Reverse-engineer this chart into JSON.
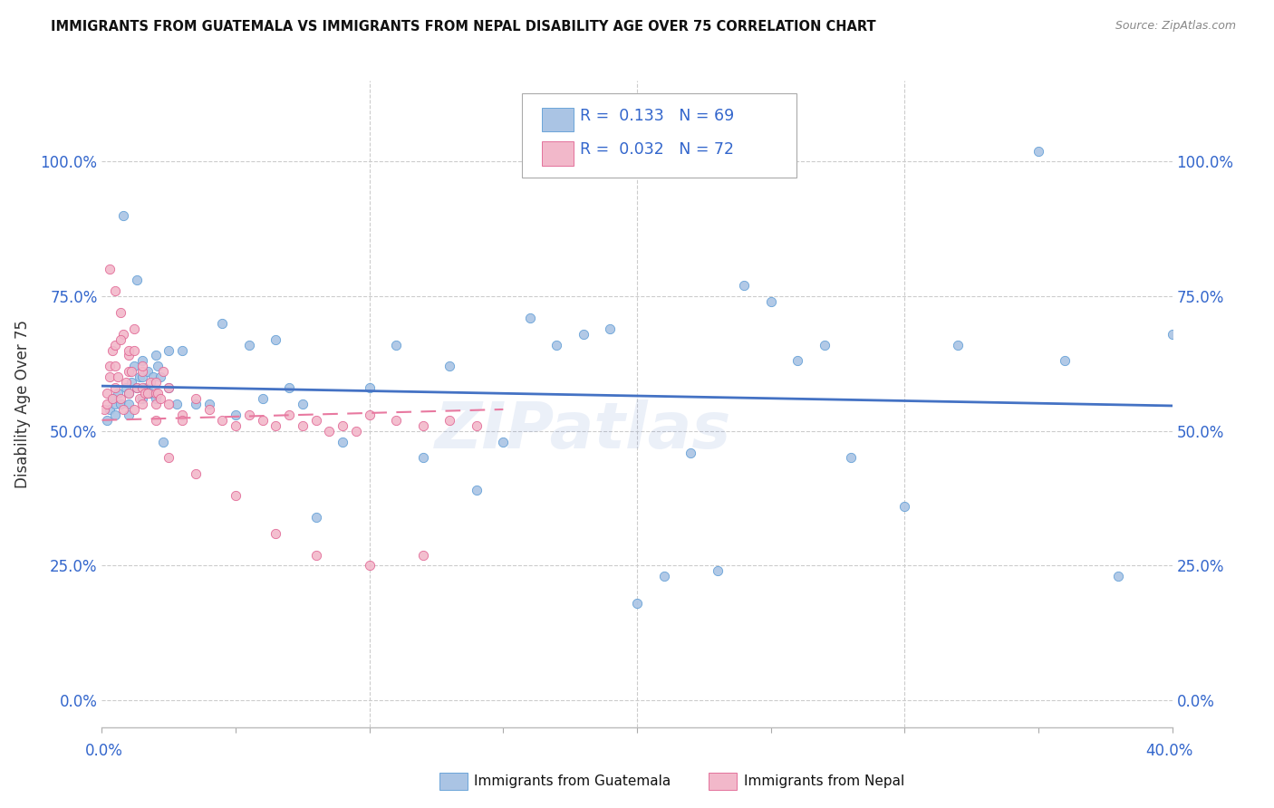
{
  "title": "IMMIGRANTS FROM GUATEMALA VS IMMIGRANTS FROM NEPAL DISABILITY AGE OVER 75 CORRELATION CHART",
  "source": "Source: ZipAtlas.com",
  "ylabel": "Disability Age Over 75",
  "ytick_values": [
    0,
    25,
    50,
    75,
    100
  ],
  "ytick_labels": [
    "0.0%",
    "25.0%",
    "50.0%",
    "75.0%",
    "100.0%"
  ],
  "xlim": [
    0,
    40
  ],
  "ylim": [
    -5,
    115
  ],
  "color_guatemala": "#aac4e4",
  "color_nepal": "#f2b8ca",
  "color_edge_guatemala": "#5b9bd5",
  "color_edge_nepal": "#e06090",
  "color_line_guatemala": "#4472c4",
  "color_line_nepal": "#e879a0",
  "legend_r1": "R =  0.133",
  "legend_n1": "N = 69",
  "legend_r2": "R =  0.032",
  "legend_n2": "N = 72",
  "guat_x": [
    0.2,
    0.3,
    0.4,
    0.5,
    0.5,
    0.6,
    0.7,
    0.8,
    0.9,
    1.0,
    1.0,
    1.0,
    1.1,
    1.2,
    1.3,
    1.4,
    1.5,
    1.5,
    1.5,
    1.6,
    1.7,
    1.8,
    1.9,
    2.0,
    2.0,
    2.1,
    2.2,
    2.3,
    2.5,
    2.5,
    2.8,
    3.0,
    3.5,
    4.0,
    4.5,
    5.0,
    5.5,
    6.0,
    6.5,
    7.0,
    7.5,
    8.0,
    9.0,
    10.0,
    11.0,
    12.0,
    13.0,
    14.0,
    15.0,
    16.0,
    17.0,
    18.0,
    19.0,
    20.0,
    21.0,
    22.0,
    23.0,
    24.0,
    25.0,
    26.0,
    27.0,
    28.0,
    30.0,
    32.0,
    35.0,
    36.0,
    38.0,
    40.0,
    1.3
  ],
  "guat_y": [
    52,
    54,
    56,
    55,
    53,
    57,
    55,
    90,
    58,
    57,
    55,
    53,
    59,
    62,
    58,
    60,
    63,
    60,
    56,
    58,
    61,
    57,
    60,
    64,
    56,
    62,
    60,
    48,
    65,
    58,
    55,
    65,
    55,
    55,
    70,
    53,
    66,
    56,
    67,
    58,
    55,
    34,
    48,
    58,
    66,
    45,
    62,
    39,
    48,
    71,
    66,
    68,
    69,
    18,
    23,
    46,
    24,
    77,
    74,
    63,
    66,
    45,
    36,
    66,
    102,
    63,
    23,
    68,
    78
  ],
  "nepal_x": [
    0.1,
    0.2,
    0.2,
    0.3,
    0.3,
    0.4,
    0.4,
    0.5,
    0.5,
    0.5,
    0.6,
    0.7,
    0.7,
    0.8,
    0.8,
    0.9,
    1.0,
    1.0,
    1.0,
    1.1,
    1.2,
    1.2,
    1.3,
    1.4,
    1.5,
    1.5,
    1.5,
    1.6,
    1.7,
    1.8,
    2.0,
    2.0,
    2.0,
    2.1,
    2.2,
    2.3,
    2.5,
    2.5,
    3.0,
    3.0,
    3.5,
    4.0,
    4.5,
    5.0,
    5.5,
    6.0,
    6.5,
    7.0,
    7.5,
    8.0,
    8.5,
    9.0,
    9.5,
    10.0,
    11.0,
    12.0,
    13.0,
    14.0,
    0.3,
    0.5,
    0.7,
    1.0,
    1.2,
    1.5,
    2.0,
    2.5,
    3.5,
    5.0,
    6.5,
    8.0,
    10.0,
    12.0
  ],
  "nepal_y": [
    54,
    57,
    55,
    62,
    60,
    65,
    56,
    66,
    62,
    58,
    60,
    72,
    56,
    68,
    54,
    59,
    64,
    61,
    57,
    61,
    69,
    54,
    58,
    56,
    61,
    58,
    55,
    57,
    57,
    59,
    57,
    55,
    52,
    57,
    56,
    61,
    58,
    55,
    53,
    52,
    56,
    54,
    52,
    51,
    53,
    52,
    51,
    53,
    51,
    52,
    50,
    51,
    50,
    53,
    52,
    51,
    52,
    51,
    80,
    76,
    67,
    65,
    65,
    62,
    59,
    45,
    42,
    38,
    31,
    27,
    25,
    27
  ]
}
